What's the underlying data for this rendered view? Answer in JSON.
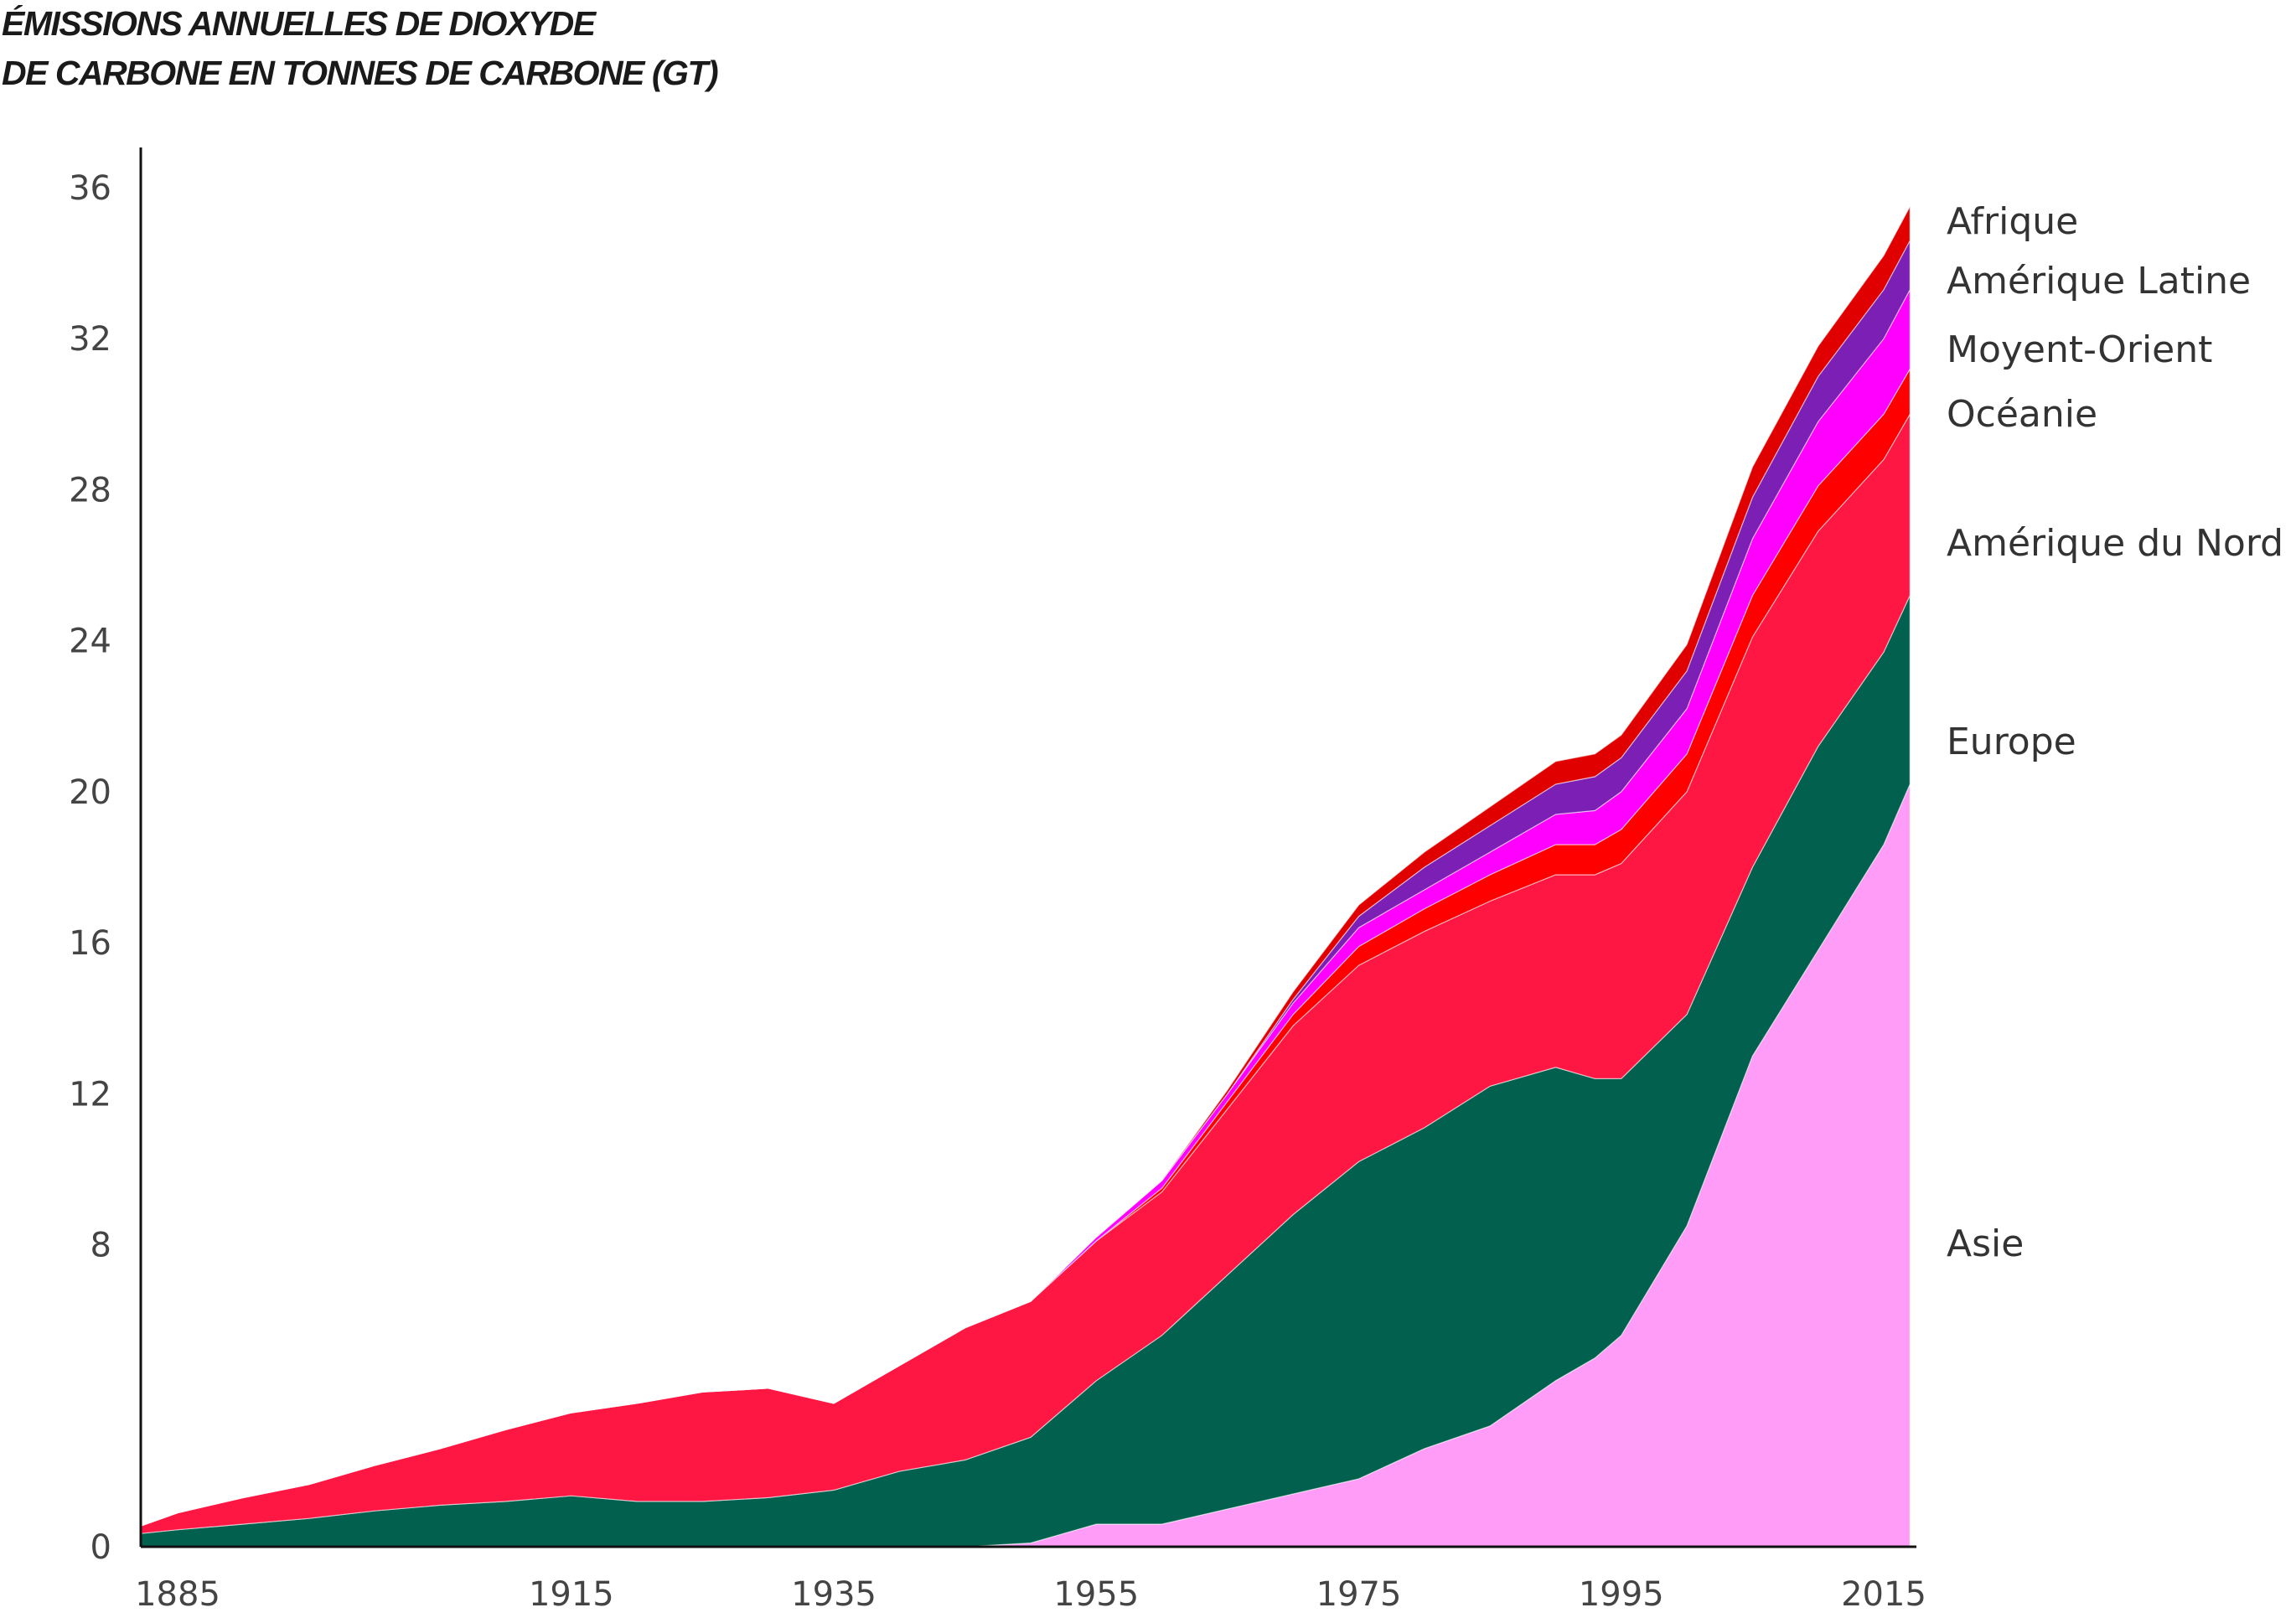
{
  "chart_data": {
    "type": "area",
    "stacked": true,
    "title": [
      "ÉMISSIONS ANNUELLES DE DIOXYDE",
      "DE CARBONE EN TONNES DE CARBONE (GT)"
    ],
    "xlabel": "",
    "ylabel": "",
    "xlim": [
      1880,
      2017
    ],
    "ylim": [
      0,
      36
    ],
    "x_ticks": [
      1885,
      1915,
      1935,
      1955,
      1975,
      1995,
      2015
    ],
    "y_ticks": [
      0,
      4,
      8,
      12,
      16,
      20,
      24,
      28,
      32,
      36
    ],
    "y_tick_labels": [
      "0",
      "",
      "8",
      "12",
      "16",
      "20",
      "24",
      "28",
      "32",
      "36"
    ],
    "grid": false,
    "legend": "right-inline",
    "x": [
      1880,
      1885,
      1890,
      1895,
      1900,
      1905,
      1910,
      1915,
      1920,
      1925,
      1930,
      1935,
      1940,
      1945,
      1950,
      1955,
      1960,
      1965,
      1970,
      1975,
      1980,
      1985,
      1990,
      1993,
      1995,
      2000,
      2005,
      2010,
      2015,
      2017
    ],
    "series": [
      {
        "name": "Asie",
        "color": "#ff9cf7",
        "values": [
          0,
          0,
          0,
          0,
          0,
          0,
          0,
          0,
          0,
          0,
          0,
          0,
          0,
          0,
          0.1,
          0.6,
          0.6,
          1.0,
          1.4,
          1.8,
          2.6,
          3.2,
          4.4,
          5.0,
          5.6,
          8.5,
          13.0,
          15.8,
          18.6,
          20.2
        ]
      },
      {
        "name": "Europe",
        "color": "#02604e",
        "values": [
          0.35,
          0.45,
          0.6,
          0.75,
          0.95,
          1.1,
          1.2,
          1.35,
          1.2,
          1.2,
          1.3,
          1.5,
          2.0,
          2.3,
          2.8,
          3.8,
          5.0,
          6.2,
          7.4,
          8.4,
          8.5,
          9.0,
          8.3,
          7.4,
          6.8,
          5.6,
          5.0,
          5.4,
          5.1,
          5.0
        ]
      },
      {
        "name": "Amérique du Nord",
        "color": "#ff1744",
        "values": [
          0.2,
          0.45,
          0.7,
          0.9,
          1.2,
          1.5,
          1.9,
          2.2,
          2.6,
          2.9,
          2.9,
          2.3,
          2.8,
          3.5,
          3.6,
          3.7,
          3.8,
          4.4,
          5.0,
          5.2,
          5.2,
          4.9,
          5.1,
          5.4,
          5.7,
          5.9,
          6.1,
          5.7,
          5.1,
          4.8
        ]
      },
      {
        "name": "Océanie",
        "color": "#ff0000",
        "values": [
          0,
          0,
          0,
          0,
          0,
          0,
          0,
          0,
          0,
          0,
          0,
          0,
          0,
          0,
          0,
          0,
          0.1,
          0.2,
          0.3,
          0.5,
          0.6,
          0.7,
          0.8,
          0.8,
          0.9,
          1.0,
          1.1,
          1.2,
          1.2,
          1.2
        ]
      },
      {
        "name": "Moyent-Orient",
        "color": "#ff00ff",
        "values": [
          0,
          0,
          0,
          0,
          0,
          0,
          0,
          0,
          0,
          0,
          0,
          0,
          0,
          0,
          0,
          0.1,
          0.2,
          0.2,
          0.3,
          0.5,
          0.5,
          0.6,
          0.8,
          0.9,
          1.0,
          1.2,
          1.5,
          1.7,
          2.0,
          2.1
        ]
      },
      {
        "name": "Amérique Latine",
        "color": "#7b1fb5",
        "values": [
          0,
          0,
          0,
          0,
          0,
          0,
          0,
          0,
          0,
          0,
          0,
          0,
          0,
          0,
          0,
          0,
          0,
          0,
          0.1,
          0.3,
          0.6,
          0.7,
          0.8,
          0.9,
          0.9,
          1.0,
          1.1,
          1.2,
          1.3,
          1.3
        ]
      },
      {
        "name": "Afrique",
        "color": "#e00000",
        "values": [
          0,
          0,
          0,
          0,
          0,
          0,
          0,
          0,
          0,
          0,
          0,
          0,
          0,
          0,
          0,
          0,
          0,
          0.1,
          0.2,
          0.3,
          0.4,
          0.5,
          0.6,
          0.6,
          0.6,
          0.7,
          0.8,
          0.8,
          0.9,
          0.9
        ]
      }
    ]
  }
}
